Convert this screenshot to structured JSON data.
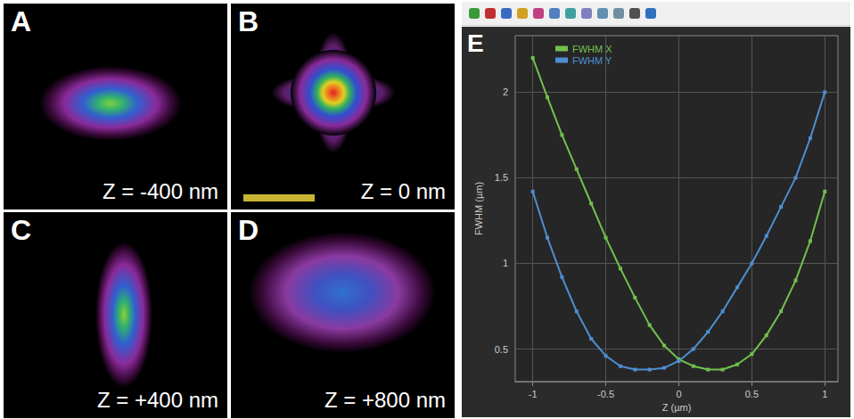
{
  "panels": [
    {
      "label": "A",
      "z_label": "Z = -400 nm"
    },
    {
      "label": "B",
      "z_label": "Z = 0 nm"
    },
    {
      "label": "C",
      "z_label": "Z = +400 nm"
    },
    {
      "label": "D",
      "z_label": "Z = +800 nm"
    }
  ],
  "chart_data": {
    "type": "line",
    "label": "E",
    "x_label": "Z (µm)",
    "y_label": "FWHM (µm)",
    "x": [
      -1,
      -0.9,
      -0.8,
      -0.7,
      -0.6,
      -0.5,
      -0.4,
      -0.3,
      -0.2,
      -0.1,
      0,
      0.1,
      0.2,
      0.3,
      0.4,
      0.5,
      0.6,
      0.7,
      0.8,
      0.9,
      1
    ],
    "series": [
      {
        "name": "FWHM X",
        "color": "#72c04e",
        "marker": "square",
        "values": [
          2.2,
          1.97,
          1.75,
          1.55,
          1.35,
          1.15,
          0.97,
          0.8,
          0.64,
          0.52,
          0.44,
          0.4,
          0.38,
          0.38,
          0.41,
          0.47,
          0.58,
          0.72,
          0.9,
          1.13,
          1.42
        ]
      },
      {
        "name": "FWHM Y",
        "color": "#4d8fd1",
        "marker": "square",
        "values": [
          1.42,
          1.15,
          0.92,
          0.72,
          0.56,
          0.46,
          0.4,
          0.38,
          0.38,
          0.39,
          0.43,
          0.5,
          0.6,
          0.72,
          0.86,
          1.0,
          1.16,
          1.33,
          1.5,
          1.73,
          2.0
        ]
      }
    ],
    "xlim": [
      -1.12,
      1.09
    ],
    "xticks": [
      -1,
      -0.5,
      0,
      0.5,
      1
    ],
    "ylim": [
      0.31,
      2.33
    ],
    "yticks": [
      0.5,
      1,
      1.5,
      2
    ],
    "grid": true,
    "legend": "upper left"
  }
}
